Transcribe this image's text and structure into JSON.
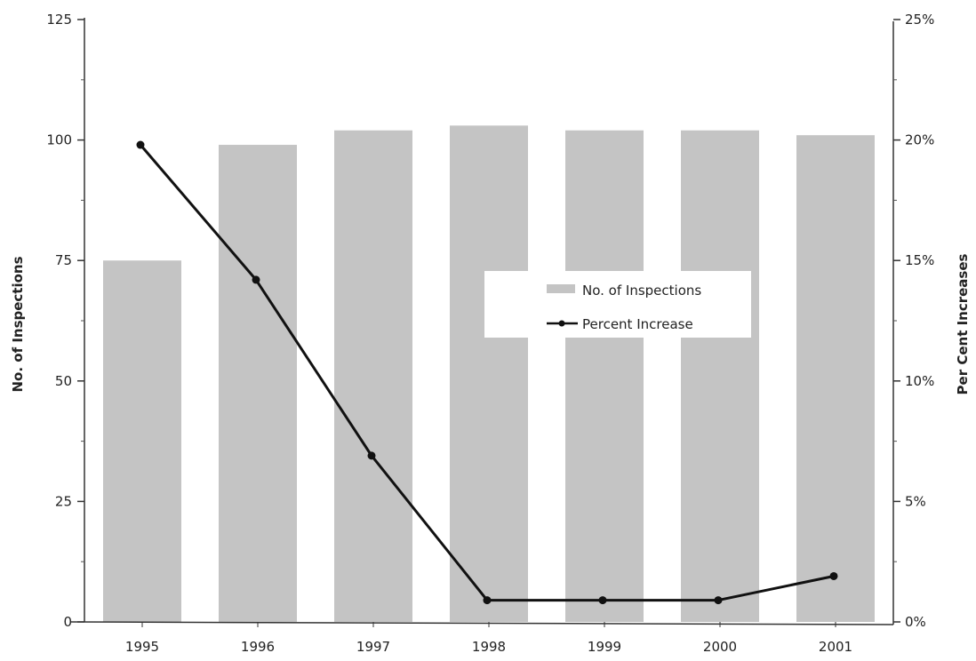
{
  "chart_data": {
    "type": "bar",
    "categories": [
      "1995",
      "1996",
      "1997",
      "1998",
      "1999",
      "2000",
      "2001"
    ],
    "series": [
      {
        "name": "No. of Inspections",
        "type": "bar",
        "axis": "left",
        "values": [
          75,
          99,
          102,
          103,
          102,
          102,
          101
        ]
      },
      {
        "name": "Percent Increase",
        "type": "line",
        "axis": "right",
        "values": [
          19.8,
          14.2,
          6.9,
          0.9,
          0.9,
          0.9,
          1.9
        ]
      }
    ],
    "ylabel": "No. of Inspections",
    "ylabel_right": "Per Cent Increases",
    "ylim": [
      0,
      125
    ],
    "ylim_right": [
      0,
      25
    ],
    "yticks": [
      "0",
      "25",
      "50",
      "75",
      "100",
      "125"
    ],
    "yticks_right": [
      "0%",
      "5%",
      "10%",
      "15%",
      "20%",
      "25%"
    ],
    "legend_position": "center",
    "grid": false,
    "colors": {
      "bar": "#c4c4c4",
      "line": "#111111"
    }
  }
}
